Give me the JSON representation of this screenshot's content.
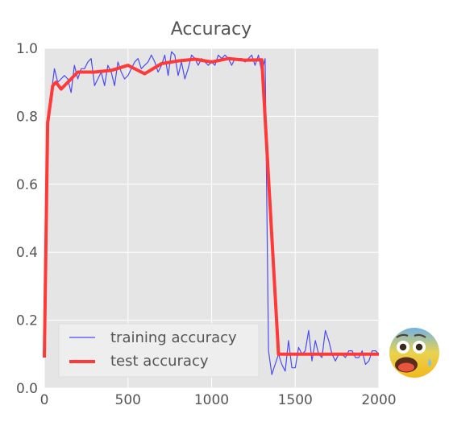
{
  "chart_data": {
    "type": "line",
    "title": "Accuracy",
    "xlabel": "",
    "ylabel": "",
    "xlim": [
      0,
      2000
    ],
    "ylim": [
      0,
      1
    ],
    "xticks": [
      "0",
      "500",
      "1000",
      "1500",
      "2000"
    ],
    "yticks": [
      "0.0",
      "0.2",
      "0.4",
      "0.6",
      "0.8",
      "1.0"
    ],
    "grid": true,
    "legend_position": "lower-left",
    "series": [
      {
        "name": "training accuracy",
        "color": "#4b4bf0",
        "x": [
          0,
          20,
          40,
          60,
          80,
          100,
          120,
          140,
          160,
          180,
          200,
          220,
          240,
          260,
          280,
          300,
          320,
          340,
          360,
          380,
          400,
          420,
          440,
          460,
          480,
          500,
          520,
          540,
          560,
          580,
          600,
          620,
          640,
          660,
          680,
          700,
          720,
          740,
          760,
          780,
          800,
          820,
          840,
          860,
          880,
          900,
          920,
          940,
          960,
          980,
          1000,
          1020,
          1040,
          1060,
          1080,
          1100,
          1120,
          1140,
          1160,
          1180,
          1200,
          1220,
          1240,
          1260,
          1280,
          1300,
          1320,
          1340,
          1360,
          1380,
          1400,
          1420,
          1440,
          1460,
          1480,
          1500,
          1520,
          1540,
          1560,
          1580,
          1600,
          1620,
          1640,
          1660,
          1680,
          1700,
          1720,
          1740,
          1760,
          1780,
          1800,
          1820,
          1840,
          1860,
          1880,
          1900,
          1920,
          1940,
          1960,
          1980,
          2000
        ],
        "y": [
          0.1,
          0.78,
          0.86,
          0.94,
          0.9,
          0.91,
          0.92,
          0.91,
          0.87,
          0.95,
          0.91,
          0.94,
          0.94,
          0.96,
          0.97,
          0.89,
          0.91,
          0.93,
          0.89,
          0.95,
          0.93,
          0.89,
          0.96,
          0.93,
          0.91,
          0.92,
          0.94,
          0.96,
          0.97,
          0.94,
          0.95,
          0.96,
          0.98,
          0.96,
          0.93,
          0.95,
          0.98,
          0.92,
          0.99,
          0.98,
          0.92,
          0.96,
          0.91,
          0.94,
          0.98,
          0.97,
          0.95,
          0.97,
          0.96,
          0.95,
          0.96,
          0.95,
          0.98,
          0.97,
          0.98,
          0.97,
          0.95,
          0.97,
          0.97,
          0.97,
          0.96,
          0.97,
          0.98,
          0.95,
          0.98,
          0.93,
          0.97,
          0.11,
          0.04,
          0.07,
          0.1,
          0.07,
          0.05,
          0.14,
          0.06,
          0.06,
          0.12,
          0.1,
          0.11,
          0.17,
          0.08,
          0.14,
          0.1,
          0.09,
          0.17,
          0.14,
          0.1,
          0.08,
          0.1,
          0.1,
          0.09,
          0.11,
          0.11,
          0.09,
          0.09,
          0.11,
          0.07,
          0.08,
          0.11,
          0.11,
          0.1
        ]
      },
      {
        "name": "test accuracy",
        "color": "#ff3838",
        "x": [
          0,
          20,
          50,
          70,
          100,
          200,
          300,
          400,
          500,
          600,
          700,
          800,
          900,
          1000,
          1100,
          1200,
          1300,
          1400,
          1500,
          1600,
          1700,
          1800,
          1900,
          2000
        ],
        "y": [
          0.09,
          0.78,
          0.89,
          0.9,
          0.88,
          0.93,
          0.93,
          0.935,
          0.95,
          0.925,
          0.955,
          0.963,
          0.968,
          0.96,
          0.97,
          0.965,
          0.966,
          0.1,
          0.1,
          0.1,
          0.1,
          0.1,
          0.1,
          0.1
        ]
      }
    ]
  },
  "decorations": {
    "emoji_icon": "fearful-face-icon",
    "emoji_glyph": "😨"
  }
}
